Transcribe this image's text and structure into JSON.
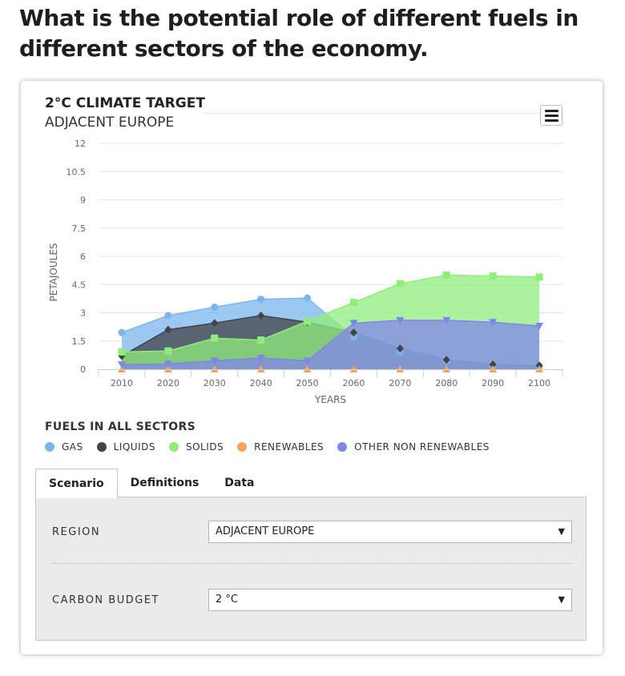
{
  "page": {
    "title": "What is the potential role of different fuels in different sectors of the economy."
  },
  "chart_data": {
    "type": "area",
    "title": "2°C CLIMATE TARGET",
    "subtitle": "ADJACENT EUROPE",
    "xlabel": "YEARS",
    "ylabel": "PETAJOULES",
    "x": [
      2010,
      2020,
      2030,
      2040,
      2050,
      2060,
      2070,
      2080,
      2090,
      2100
    ],
    "ylim": [
      0,
      12
    ],
    "yticks": [
      0,
      1.5,
      3,
      4.5,
      6,
      7.5,
      9,
      10.5,
      12
    ],
    "ytick_labels": [
      "0",
      "1.5",
      "3",
      "4.5",
      "6",
      "7.5",
      "9",
      "10.5",
      "12"
    ],
    "grid": true,
    "legend_title": "FUELS IN ALL SECTORS",
    "series": [
      {
        "name": "GAS",
        "color": "#7cb5ec",
        "marker": "circle",
        "values": [
          1.95,
          2.85,
          3.3,
          3.72,
          3.78,
          1.7,
          0.9,
          0.45,
          0.2,
          0.15
        ]
      },
      {
        "name": "LIQUIDS",
        "color": "#434348",
        "marker": "diamond",
        "values": [
          0.7,
          2.1,
          2.45,
          2.85,
          2.5,
          1.95,
          1.1,
          0.5,
          0.25,
          0.2
        ]
      },
      {
        "name": "SOLIDS",
        "color": "#90ed7d",
        "marker": "square",
        "values": [
          0.92,
          0.97,
          1.65,
          1.55,
          2.55,
          3.55,
          4.55,
          5.0,
          4.95,
          4.9
        ]
      },
      {
        "name": "RENEWABLES",
        "color": "#f7a35c",
        "marker": "triangle",
        "values": [
          0,
          0,
          0,
          0,
          0,
          0,
          0,
          0,
          0,
          0
        ]
      },
      {
        "name": "OTHER NON RENEWABLES",
        "color": "#8085e9",
        "marker": "triangle-down",
        "values": [
          0.25,
          0.28,
          0.45,
          0.6,
          0.45,
          2.45,
          2.6,
          2.6,
          2.5,
          2.3
        ]
      }
    ]
  },
  "controls": {
    "tabs": [
      "Scenario",
      "Definitions",
      "Data"
    ],
    "region_label": "REGION",
    "region_value": "ADJACENT EUROPE",
    "budget_label": "CARBON BUDGET",
    "budget_value": "2 °C",
    "dropdown_icon": "chevron-down-icon"
  }
}
